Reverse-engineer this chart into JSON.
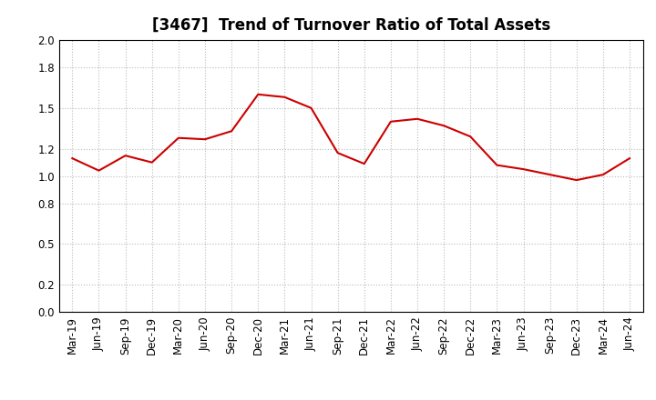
{
  "title": "[3467]  Trend of Turnover Ratio of Total Assets",
  "x_labels": [
    "Mar-19",
    "Jun-19",
    "Sep-19",
    "Dec-19",
    "Mar-20",
    "Jun-20",
    "Sep-20",
    "Dec-20",
    "Mar-21",
    "Jun-21",
    "Sep-21",
    "Dec-21",
    "Mar-22",
    "Jun-22",
    "Sep-22",
    "Dec-22",
    "Mar-23",
    "Jun-23",
    "Sep-23",
    "Dec-23",
    "Mar-24",
    "Jun-24"
  ],
  "y_values": [
    1.13,
    1.04,
    1.15,
    1.1,
    1.28,
    1.27,
    1.33,
    1.6,
    1.58,
    1.5,
    1.17,
    1.09,
    1.4,
    1.42,
    1.37,
    1.29,
    1.08,
    1.05,
    1.01,
    0.97,
    1.01,
    1.13
  ],
  "line_color": "#cc0000",
  "line_width": 1.5,
  "ylim": [
    0.0,
    2.0
  ],
  "yticks": [
    0.0,
    0.2,
    0.5,
    0.8,
    1.0,
    1.2,
    1.5,
    1.8,
    2.0
  ],
  "background_color": "#ffffff",
  "plot_bg_color": "#ffffff",
  "grid_color": "#bbbbbb",
  "title_fontsize": 12,
  "tick_fontsize": 8.5
}
